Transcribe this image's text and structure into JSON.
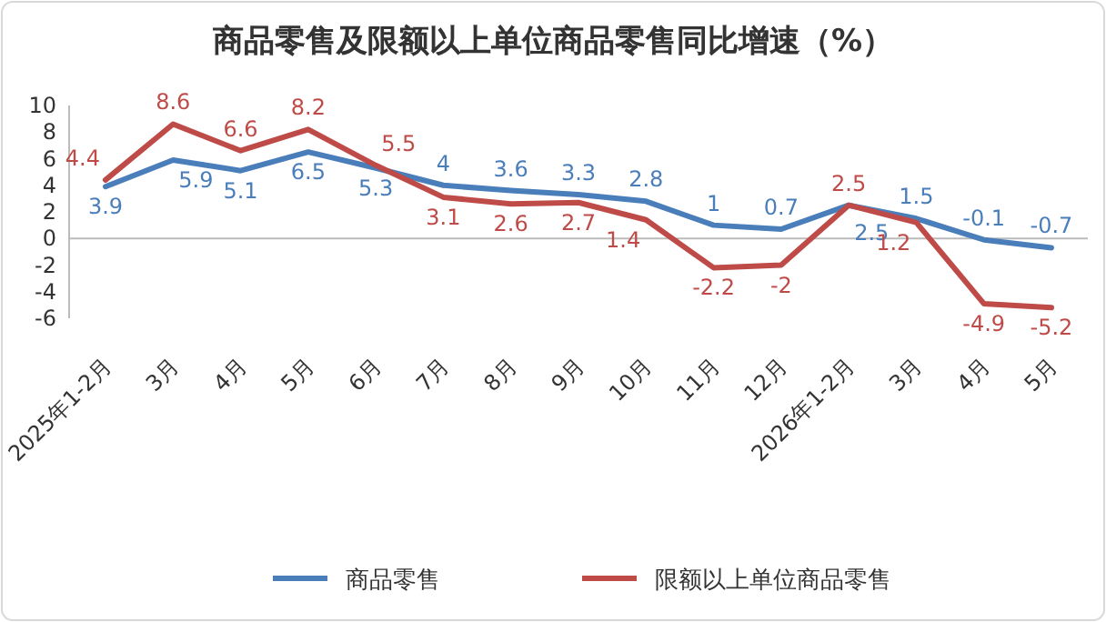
{
  "chart_data": {
    "type": "line",
    "title": "商品零售及限额以上单位商品零售同比增速（%）",
    "categories": [
      "2025年1-2月",
      "3月",
      "4月",
      "5月",
      "6月",
      "7月",
      "8月",
      "9月",
      "10月",
      "11月",
      "12月",
      "2026年1-2月",
      "3月",
      "4月",
      "5月"
    ],
    "series": [
      {
        "name": "商品零售",
        "color": "#4a7ebb",
        "values": [
          3.9,
          5.9,
          5.1,
          6.5,
          5.3,
          4,
          3.6,
          3.3,
          2.8,
          1,
          0.7,
          2.5,
          1.5,
          -0.1,
          -0.7
        ]
      },
      {
        "name": "限额以上单位商品零售",
        "color": "#be4b48",
        "values": [
          4.4,
          8.6,
          6.6,
          8.2,
          5.5,
          3.1,
          2.6,
          2.7,
          1.4,
          -2.2,
          -2,
          2.5,
          1.2,
          -4.9,
          -5.2
        ]
      }
    ],
    "ylim": [
      -6,
      10
    ],
    "yticks": [
      -6,
      -4,
      -2,
      0,
      2,
      4,
      6,
      8,
      10
    ],
    "legend": "bottom",
    "data_labels": true,
    "marker": "none",
    "line_style": "solid"
  }
}
